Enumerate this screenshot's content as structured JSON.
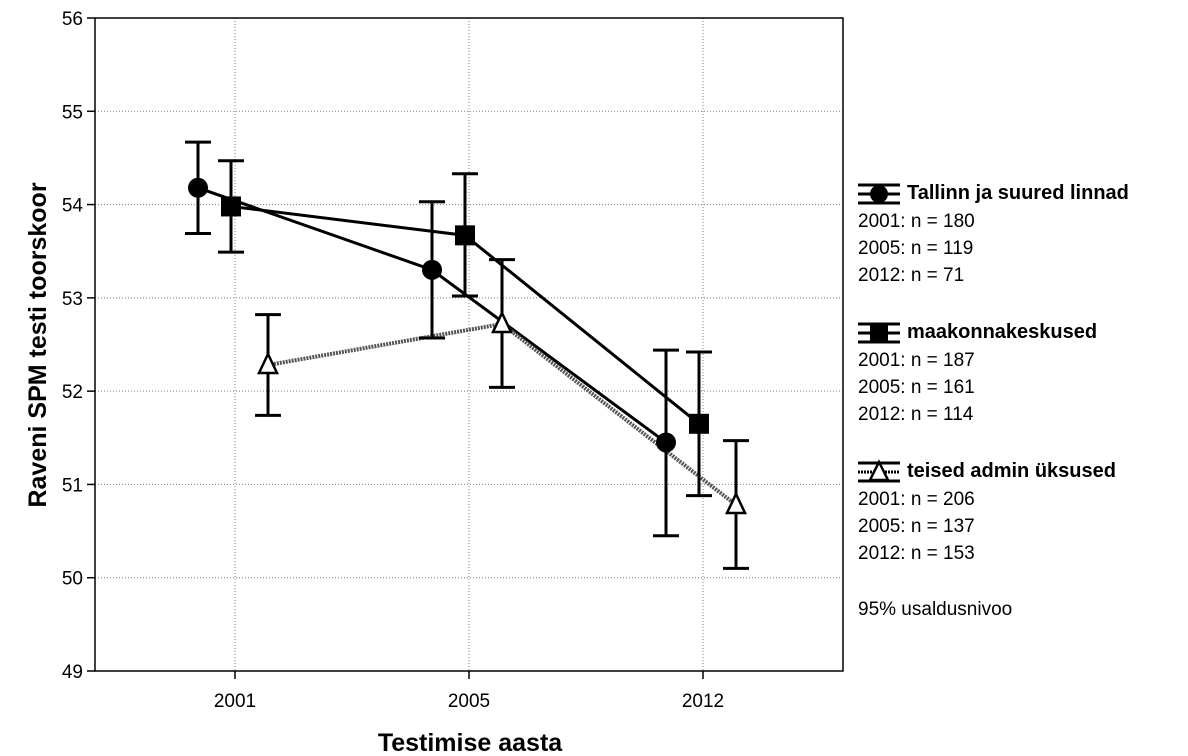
{
  "chart_data": {
    "type": "line",
    "xlabel": "Testimise aasta",
    "ylabel": "Raveni SPM testi toorskoor",
    "categories": [
      "2001",
      "2005",
      "2012"
    ],
    "ylim": [
      49,
      56
    ],
    "yticks": [
      49,
      50,
      51,
      52,
      53,
      54,
      55,
      56
    ],
    "grid": true,
    "error_bars": "95% usaldusnivoo",
    "series": [
      {
        "name": "Tallinn ja suured linnad",
        "marker": "circle",
        "line_style": "solid",
        "values": [
          54.18,
          53.3,
          51.45
        ],
        "lower": [
          53.69,
          52.57,
          50.45
        ],
        "upper": [
          54.67,
          54.03,
          52.44
        ],
        "n": [
          "2001: n = 180",
          "2005: n = 119",
          "2012: n = 71"
        ]
      },
      {
        "name": "maakonnakeskused",
        "marker": "square",
        "line_style": "solid",
        "values": [
          53.98,
          53.67,
          51.65
        ],
        "lower": [
          53.49,
          53.02,
          50.88
        ],
        "upper": [
          54.47,
          54.33,
          52.42
        ],
        "n": [
          "2001: n = 187",
          "2005: n = 161",
          "2012: n = 114"
        ]
      },
      {
        "name": "teised admin üksused",
        "marker": "triangle",
        "line_style": "dotted",
        "values": [
          52.28,
          52.72,
          50.78
        ],
        "lower": [
          51.74,
          52.04,
          50.1
        ],
        "upper": [
          52.82,
          53.41,
          51.47
        ],
        "n": [
          "2001: n = 206",
          "2005: n = 137",
          "2012: n = 153"
        ]
      }
    ],
    "legend_position": "right",
    "colors": {
      "line": "#000000",
      "grid": "#808080",
      "hollow_fill": "#ffffff"
    }
  },
  "legend": {
    "series_titles": [
      "Tallinn ja suured linnad",
      "maakonnakeskused",
      "teised admin üksused"
    ],
    "ci_note": "95% usaldusnivoo"
  }
}
